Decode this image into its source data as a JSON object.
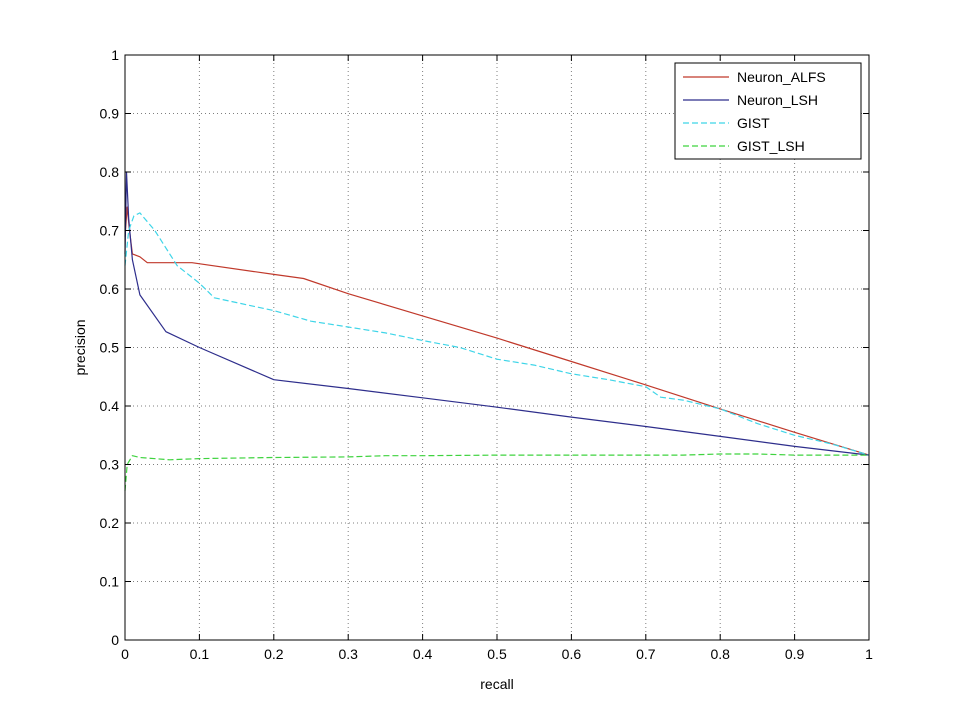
{
  "chart_data": {
    "type": "line",
    "title": "",
    "xlabel": "recall",
    "ylabel": "precision",
    "xlim": [
      0,
      1
    ],
    "ylim": [
      0,
      1
    ],
    "xticks": [
      0,
      0.1,
      0.2,
      0.3,
      0.4,
      0.5,
      0.6,
      0.7,
      0.8,
      0.9,
      1
    ],
    "yticks": [
      0,
      0.1,
      0.2,
      0.3,
      0.4,
      0.5,
      0.6,
      0.7,
      0.8,
      0.9,
      1
    ],
    "xtick_labels": [
      "0",
      "0.1",
      "0.2",
      "0.3",
      "0.4",
      "0.5",
      "0.6",
      "0.7",
      "0.8",
      "0.9",
      "1"
    ],
    "ytick_labels": [
      "0",
      "0.1",
      "0.2",
      "0.3",
      "0.4",
      "0.5",
      "0.6",
      "0.7",
      "0.8",
      "0.9",
      "1"
    ],
    "grid": true,
    "legend_position": "top-right",
    "series": [
      {
        "name": "Neuron_ALFS",
        "color": "#c0392b",
        "dash": "solid",
        "x": [
          0,
          0.003,
          0.006,
          0.01,
          0.02,
          0.03,
          0.05,
          0.09,
          0.2,
          0.24,
          0.3,
          0.4,
          0.5,
          0.6,
          0.7,
          0.8,
          0.9,
          1.0
        ],
        "y": [
          0.69,
          0.74,
          0.7,
          0.66,
          0.655,
          0.645,
          0.645,
          0.645,
          0.625,
          0.618,
          0.592,
          0.554,
          0.516,
          0.476,
          0.436,
          0.395,
          0.355,
          0.316
        ]
      },
      {
        "name": "Neuron_LSH",
        "color": "#2e2e8c",
        "dash": "solid",
        "x": [
          0,
          0.002,
          0.005,
          0.01,
          0.02,
          0.055,
          0.1,
          0.2,
          0.3,
          0.4,
          0.5,
          0.6,
          0.7,
          0.8,
          0.9,
          1.0
        ],
        "y": [
          0.66,
          0.8,
          0.72,
          0.65,
          0.59,
          0.527,
          0.5,
          0.445,
          0.43,
          0.414,
          0.398,
          0.381,
          0.365,
          0.348,
          0.331,
          0.316
        ]
      },
      {
        "name": "GIST",
        "color": "#3fd5e8",
        "dash": "dashed",
        "x": [
          0,
          0.005,
          0.012,
          0.02,
          0.04,
          0.07,
          0.1,
          0.12,
          0.2,
          0.25,
          0.3,
          0.35,
          0.4,
          0.45,
          0.5,
          0.55,
          0.6,
          0.65,
          0.7,
          0.72,
          0.75,
          0.8,
          0.85,
          0.9,
          0.95,
          1.0
        ],
        "y": [
          0.64,
          0.7,
          0.725,
          0.73,
          0.7,
          0.64,
          0.61,
          0.585,
          0.563,
          0.545,
          0.535,
          0.525,
          0.512,
          0.5,
          0.48,
          0.47,
          0.455,
          0.445,
          0.433,
          0.415,
          0.41,
          0.395,
          0.37,
          0.35,
          0.335,
          0.316
        ]
      },
      {
        "name": "GIST_LSH",
        "color": "#3fd33f",
        "dash": "dashed",
        "x": [
          0,
          0.003,
          0.01,
          0.02,
          0.06,
          0.1,
          0.2,
          0.3,
          0.35,
          0.4,
          0.5,
          0.6,
          0.7,
          0.75,
          0.8,
          0.85,
          0.9,
          0.95,
          1.0
        ],
        "y": [
          0.255,
          0.3,
          0.315,
          0.312,
          0.308,
          0.31,
          0.312,
          0.313,
          0.315,
          0.315,
          0.316,
          0.316,
          0.316,
          0.316,
          0.318,
          0.318,
          0.316,
          0.316,
          0.316
        ]
      }
    ]
  }
}
